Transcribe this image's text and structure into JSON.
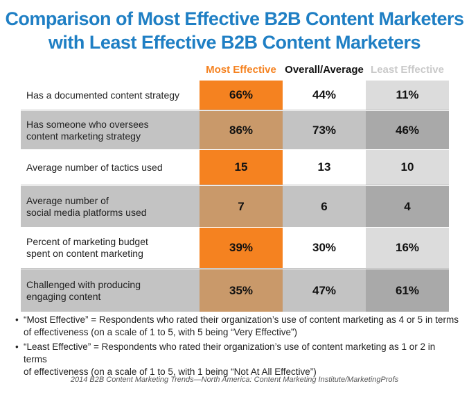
{
  "title_line1": "Comparison of Most Effective B2B Content Marketers",
  "title_line2": "with Least Effective B2B Content Marketers",
  "chart_data": {
    "type": "table",
    "columns": [
      "Most Effective",
      "Overall/Average",
      "Least Effective"
    ],
    "rows": [
      {
        "label_line1": "Has a documented content strategy",
        "label_line2": "",
        "values": [
          "66%",
          "44%",
          "11%"
        ]
      },
      {
        "label_line1": "Has someone who oversees",
        "label_line2": "content marketing strategy",
        "values": [
          "86%",
          "73%",
          "46%"
        ]
      },
      {
        "label_line1": "Average number of tactics used",
        "label_line2": "",
        "values": [
          "15",
          "13",
          "10"
        ]
      },
      {
        "label_line1": "Average number of",
        "label_line2": "social media platforms used",
        "values": [
          "7",
          "6",
          "4"
        ]
      },
      {
        "label_line1": "Percent of marketing budget",
        "label_line2": "spent on content marketing",
        "values": [
          "39%",
          "30%",
          "16%"
        ]
      },
      {
        "label_line1": "Challenged with producing",
        "label_line2": "engaging content",
        "values": [
          "35%",
          "47%",
          "61%"
        ]
      }
    ]
  },
  "notes": [
    {
      "bullet": "•",
      "line1": "“Most Effective” = Respondents who rated their organization’s use of content marketing as 4 or 5 in terms",
      "line2": "of effectiveness (on a scale of 1 to 5, with 5 being “Very Effective”)"
    },
    {
      "bullet": "•",
      "line1": "“Least Effective” = Respondents who rated their organization’s use of content marketing as 1 or 2 in terms",
      "line2": "of effectiveness (on a scale of 1 to 5, with 1 being “Not At All Effective”)"
    }
  ],
  "source": "2014 B2B Content Marketing Trends—North America: Content Marketing Institute/MarketingProfs",
  "colors": {
    "title": "#1f7fc4",
    "most_effective": "#f58220",
    "most_effective_shaded": "#c9996a",
    "least_effective_header": "#c9c9c9"
  }
}
